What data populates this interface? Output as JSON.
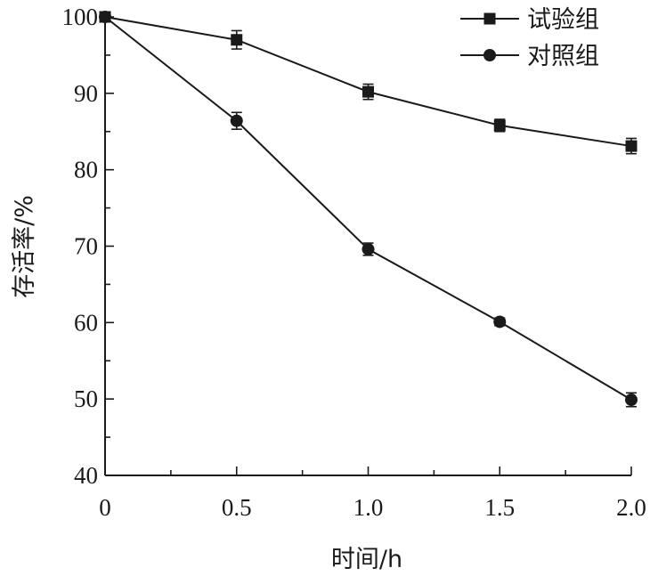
{
  "chart_data": {
    "type": "line",
    "xlabel": "时间/h",
    "ylabel": "存活率/%",
    "x": [
      0,
      0.5,
      1.0,
      1.5,
      2.0
    ],
    "x_tick_labels": [
      "0",
      "0.5",
      "1.0",
      "1.5",
      "2.0"
    ],
    "y_tick_labels": [
      "40",
      "50",
      "60",
      "70",
      "80",
      "90",
      "100"
    ],
    "xlim": [
      0,
      2.0
    ],
    "ylim": [
      40,
      100
    ],
    "grid": false,
    "legend_position": "top-right",
    "series": [
      {
        "name": "试验组",
        "marker": "square",
        "values": [
          100,
          97.0,
          90.2,
          85.8,
          83.1
        ],
        "errors": [
          0,
          1.2,
          1.0,
          0.8,
          1.0
        ]
      },
      {
        "name": "对照组",
        "marker": "circle",
        "values": [
          100,
          86.4,
          69.6,
          60.1,
          49.9
        ],
        "errors": [
          0,
          1.1,
          0.8,
          0.5,
          0.9
        ]
      }
    ],
    "colors": {
      "line": "#1a1a1a",
      "background": "#ffffff"
    }
  }
}
